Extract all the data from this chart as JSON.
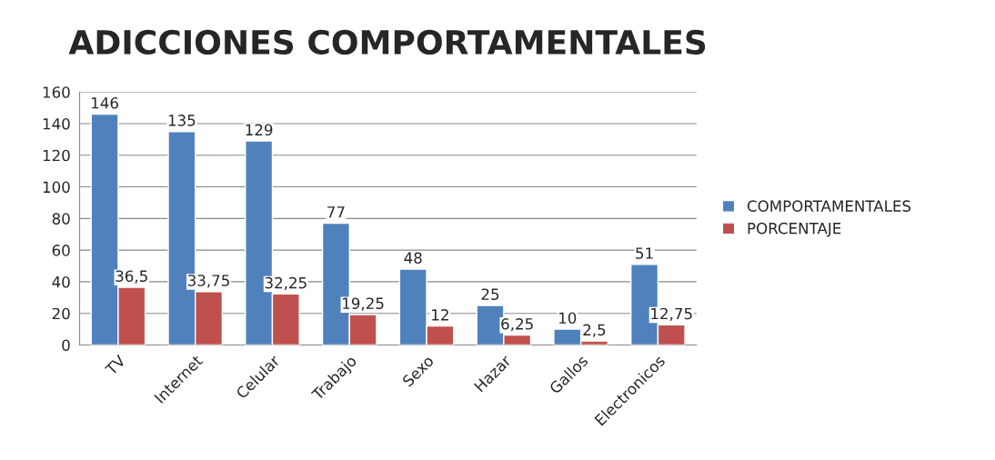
{
  "chart_data": {
    "type": "bar",
    "title": "ADICCIONES COMPORTAMENTALES",
    "categories": [
      "TV",
      "Internet",
      "Celular",
      "Trabajo",
      "Sexo",
      "Hazar",
      "Gallos",
      "Electronicos"
    ],
    "series": [
      {
        "name": "COMPORTAMENTALES",
        "color": "#4f81bd",
        "values": [
          146,
          135,
          129,
          77,
          48,
          25,
          10,
          51
        ],
        "value_labels": [
          "146",
          "135",
          "129",
          "77",
          "48",
          "25",
          "10",
          "51"
        ]
      },
      {
        "name": "PORCENTAJE",
        "color": "#c0504d",
        "values": [
          36.5,
          33.75,
          32.25,
          19.25,
          12,
          6.25,
          2.5,
          12.75
        ],
        "value_labels": [
          "36,5",
          "33,75",
          "32,25",
          "19,25",
          "12",
          "6,25",
          "2,5",
          "12,75"
        ]
      }
    ],
    "ylim": [
      0,
      160
    ],
    "yticks": [
      0,
      20,
      40,
      60,
      80,
      100,
      120,
      140,
      160
    ],
    "grid": "y",
    "legend": "right"
  }
}
